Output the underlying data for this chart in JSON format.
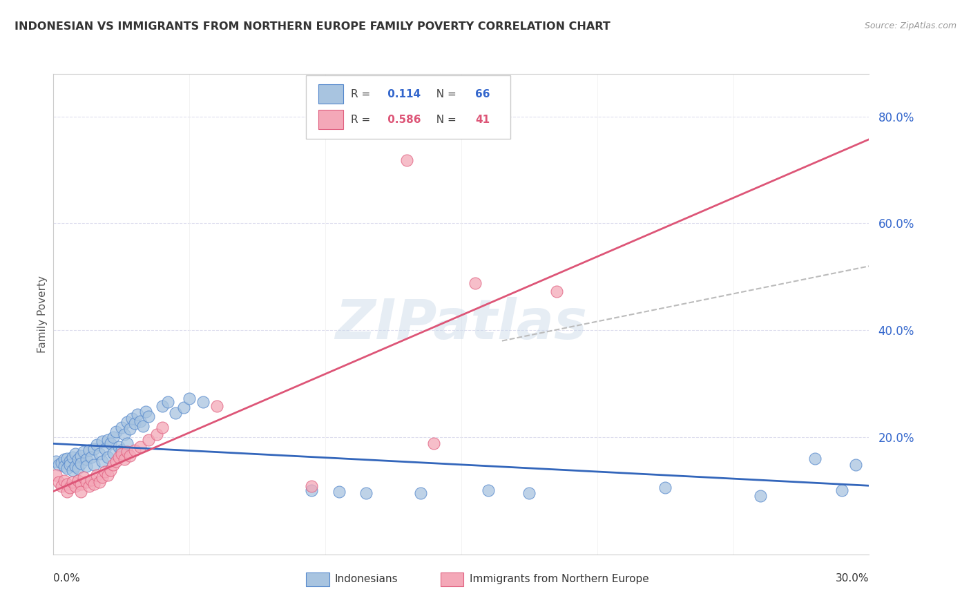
{
  "title": "INDONESIAN VS IMMIGRANTS FROM NORTHERN EUROPE FAMILY POVERTY CORRELATION CHART",
  "source": "Source: ZipAtlas.com",
  "ylabel": "Family Poverty",
  "y_ticks_right": [
    0.2,
    0.4,
    0.6,
    0.8
  ],
  "y_tick_labels_right": [
    "20.0%",
    "40.0%",
    "60.0%",
    "80.0%"
  ],
  "xlim": [
    0.0,
    0.3
  ],
  "ylim": [
    -0.02,
    0.88
  ],
  "r_blue": 0.114,
  "n_blue": 66,
  "r_pink": 0.586,
  "n_pink": 41,
  "blue_color": "#A8C4E0",
  "pink_color": "#F4A8B8",
  "blue_edge_color": "#5588CC",
  "pink_edge_color": "#E06080",
  "blue_line_color": "#3366BB",
  "pink_line_color": "#DD5577",
  "watermark_text": "ZIPatlas",
  "background_color": "#FFFFFF",
  "blue_scatter": [
    [
      0.001,
      0.155
    ],
    [
      0.002,
      0.148
    ],
    [
      0.003,
      0.152
    ],
    [
      0.004,
      0.158
    ],
    [
      0.004,
      0.145
    ],
    [
      0.005,
      0.16
    ],
    [
      0.005,
      0.142
    ],
    [
      0.006,
      0.155
    ],
    [
      0.006,
      0.148
    ],
    [
      0.007,
      0.162
    ],
    [
      0.007,
      0.138
    ],
    [
      0.008,
      0.168
    ],
    [
      0.008,
      0.145
    ],
    [
      0.009,
      0.158
    ],
    [
      0.009,
      0.142
    ],
    [
      0.01,
      0.165
    ],
    [
      0.01,
      0.15
    ],
    [
      0.011,
      0.172
    ],
    [
      0.012,
      0.158
    ],
    [
      0.012,
      0.145
    ],
    [
      0.013,
      0.175
    ],
    [
      0.014,
      0.162
    ],
    [
      0.015,
      0.178
    ],
    [
      0.015,
      0.148
    ],
    [
      0.016,
      0.185
    ],
    [
      0.017,
      0.168
    ],
    [
      0.018,
      0.192
    ],
    [
      0.018,
      0.155
    ],
    [
      0.019,
      0.178
    ],
    [
      0.02,
      0.195
    ],
    [
      0.02,
      0.162
    ],
    [
      0.021,
      0.188
    ],
    [
      0.022,
      0.2
    ],
    [
      0.022,
      0.17
    ],
    [
      0.023,
      0.21
    ],
    [
      0.024,
      0.182
    ],
    [
      0.025,
      0.218
    ],
    [
      0.025,
      0.175
    ],
    [
      0.026,
      0.205
    ],
    [
      0.027,
      0.228
    ],
    [
      0.027,
      0.188
    ],
    [
      0.028,
      0.215
    ],
    [
      0.029,
      0.235
    ],
    [
      0.03,
      0.225
    ],
    [
      0.031,
      0.242
    ],
    [
      0.032,
      0.23
    ],
    [
      0.033,
      0.22
    ],
    [
      0.034,
      0.248
    ],
    [
      0.035,
      0.238
    ],
    [
      0.04,
      0.258
    ],
    [
      0.042,
      0.265
    ],
    [
      0.045,
      0.245
    ],
    [
      0.048,
      0.255
    ],
    [
      0.05,
      0.272
    ],
    [
      0.055,
      0.265
    ],
    [
      0.095,
      0.1
    ],
    [
      0.105,
      0.098
    ],
    [
      0.115,
      0.095
    ],
    [
      0.135,
      0.095
    ],
    [
      0.16,
      0.1
    ],
    [
      0.175,
      0.095
    ],
    [
      0.225,
      0.105
    ],
    [
      0.26,
      0.09
    ],
    [
      0.28,
      0.16
    ],
    [
      0.295,
      0.148
    ],
    [
      0.29,
      0.1
    ]
  ],
  "pink_scatter": [
    [
      0.001,
      0.128
    ],
    [
      0.002,
      0.115
    ],
    [
      0.003,
      0.108
    ],
    [
      0.004,
      0.118
    ],
    [
      0.005,
      0.112
    ],
    [
      0.005,
      0.098
    ],
    [
      0.006,
      0.105
    ],
    [
      0.007,
      0.115
    ],
    [
      0.008,
      0.108
    ],
    [
      0.009,
      0.118
    ],
    [
      0.01,
      0.112
    ],
    [
      0.01,
      0.098
    ],
    [
      0.011,
      0.125
    ],
    [
      0.012,
      0.115
    ],
    [
      0.013,
      0.108
    ],
    [
      0.014,
      0.12
    ],
    [
      0.015,
      0.112
    ],
    [
      0.016,
      0.128
    ],
    [
      0.017,
      0.115
    ],
    [
      0.018,
      0.125
    ],
    [
      0.019,
      0.135
    ],
    [
      0.02,
      0.128
    ],
    [
      0.021,
      0.138
    ],
    [
      0.022,
      0.148
    ],
    [
      0.023,
      0.155
    ],
    [
      0.024,
      0.162
    ],
    [
      0.025,
      0.168
    ],
    [
      0.026,
      0.158
    ],
    [
      0.027,
      0.172
    ],
    [
      0.028,
      0.165
    ],
    [
      0.03,
      0.175
    ],
    [
      0.032,
      0.182
    ],
    [
      0.035,
      0.195
    ],
    [
      0.038,
      0.205
    ],
    [
      0.04,
      0.218
    ],
    [
      0.06,
      0.258
    ],
    [
      0.095,
      0.108
    ],
    [
      0.14,
      0.188
    ],
    [
      0.155,
      0.488
    ],
    [
      0.185,
      0.472
    ],
    [
      0.13,
      0.718
    ]
  ],
  "gray_line": [
    [
      0.165,
      0.38
    ],
    [
      0.3,
      0.52
    ]
  ]
}
